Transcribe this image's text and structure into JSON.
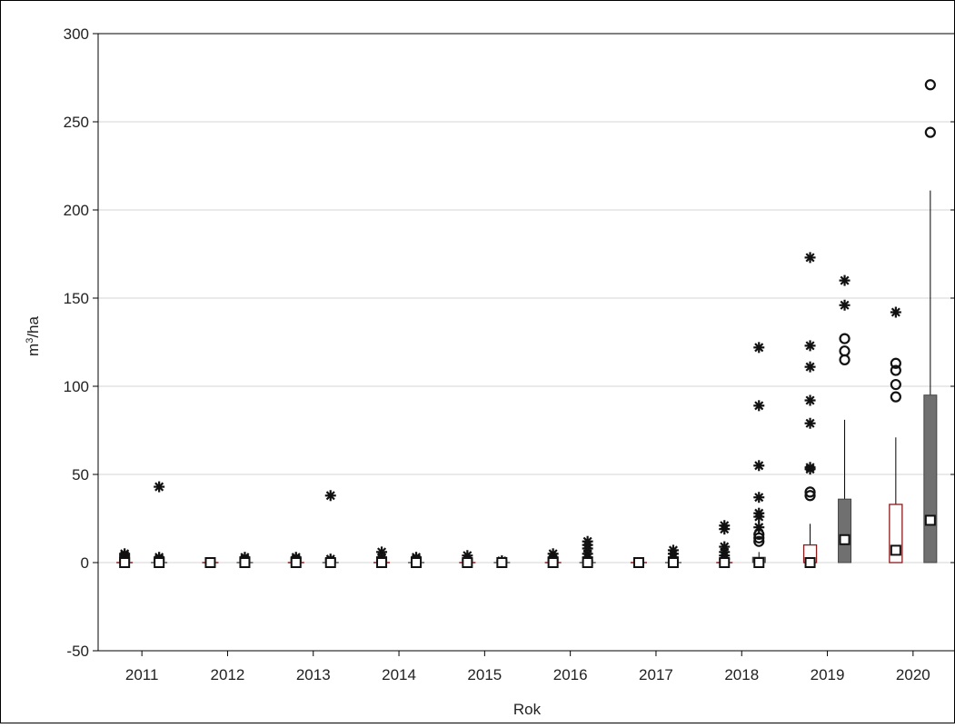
{
  "chart_data": {
    "type": "box",
    "title": "",
    "xlabel": "Rok",
    "ylabel_base": "m",
    "ylabel_sup": "3",
    "ylabel_rest": "/ha",
    "ylim": [
      -50,
      300
    ],
    "yticks": [
      -50,
      0,
      50,
      100,
      150,
      200,
      250,
      300
    ],
    "grid": true,
    "categories": [
      "2011",
      "2012",
      "2013",
      "2014",
      "2015",
      "2016",
      "2017",
      "2018",
      "2019",
      "2020"
    ],
    "series": [
      {
        "style": "hollow",
        "color": "#8b1a1a",
        "boxes": [
          {
            "median": 0,
            "q1": 0,
            "q3": 0,
            "whisker_low": 0,
            "whisker_high": 0,
            "extremes": [
              1,
              2,
              3,
              4,
              5
            ],
            "outliers": []
          },
          {
            "median": 0,
            "q1": 0,
            "q3": 0,
            "whisker_low": 0,
            "whisker_high": 0,
            "extremes": [],
            "outliers": []
          },
          {
            "median": 0,
            "q1": 0,
            "q3": 0,
            "whisker_low": 0,
            "whisker_high": 0,
            "extremes": [
              1,
              2,
              3
            ],
            "outliers": []
          },
          {
            "median": 0,
            "q1": 0,
            "q3": 0,
            "whisker_low": 0,
            "whisker_high": 0,
            "extremes": [
              1,
              3,
              6
            ],
            "outliers": []
          },
          {
            "median": 0,
            "q1": 0,
            "q3": 0,
            "whisker_low": 0,
            "whisker_high": 0,
            "extremes": [
              1,
              2,
              4
            ],
            "outliers": []
          },
          {
            "median": 0,
            "q1": 0,
            "q3": 0,
            "whisker_low": 0,
            "whisker_high": 0,
            "extremes": [
              1,
              2,
              3,
              5
            ],
            "outliers": []
          },
          {
            "median": 0,
            "q1": 0,
            "q3": 0,
            "whisker_low": 0,
            "whisker_high": 0,
            "extremes": [],
            "outliers": []
          },
          {
            "median": 0,
            "q1": 0,
            "q3": 0,
            "whisker_low": 0,
            "whisker_high": 0,
            "extremes": [
              2,
              4,
              6,
              9,
              19,
              21
            ],
            "outliers": []
          },
          {
            "median": 0,
            "q1": 0,
            "q3": 10,
            "whisker_low": 0,
            "whisker_high": 22,
            "extremes": [
              53,
              54,
              79,
              92,
              111,
              123,
              173
            ],
            "outliers": [
              38,
              40
            ]
          },
          {
            "median": 7,
            "q1": 0,
            "q3": 33,
            "whisker_low": 0,
            "whisker_high": 71,
            "extremes": [
              142
            ],
            "outliers": [
              94,
              101,
              109,
              113
            ]
          }
        ]
      },
      {
        "style": "filled",
        "color": "#707070",
        "boxes": [
          {
            "median": 0,
            "q1": 0,
            "q3": 0,
            "whisker_low": 0,
            "whisker_high": 0,
            "extremes": [
              1,
              2,
              3,
              43
            ],
            "outliers": []
          },
          {
            "median": 0,
            "q1": 0,
            "q3": 0,
            "whisker_low": 0,
            "whisker_high": 0,
            "extremes": [
              1,
              2,
              3
            ],
            "outliers": []
          },
          {
            "median": 0,
            "q1": 0,
            "q3": 0,
            "whisker_low": 0,
            "whisker_high": 0,
            "extremes": [
              1,
              2,
              38
            ],
            "outliers": []
          },
          {
            "median": 0,
            "q1": 0,
            "q3": 0,
            "whisker_low": 0,
            "whisker_high": 0,
            "extremes": [
              1,
              2,
              3
            ],
            "outliers": []
          },
          {
            "median": 0,
            "q1": 0,
            "q3": 0,
            "whisker_low": 0,
            "whisker_high": 0,
            "extremes": [
              1
            ],
            "outliers": []
          },
          {
            "median": 0,
            "q1": 0,
            "q3": 0,
            "whisker_low": 0,
            "whisker_high": 0,
            "extremes": [
              1,
              3,
              5,
              8,
              10,
              12
            ],
            "outliers": []
          },
          {
            "median": 0,
            "q1": 0,
            "q3": 0,
            "whisker_low": 0,
            "whisker_high": 0,
            "extremes": [
              1,
              3,
              5,
              7
            ],
            "outliers": []
          },
          {
            "median": 0,
            "q1": 0,
            "q3": 3,
            "whisker_low": 0,
            "whisker_high": 6,
            "extremes": [
              20,
              26,
              28,
              37,
              55,
              89,
              122
            ],
            "outliers": [
              12,
              14,
              16
            ]
          },
          {
            "median": 13,
            "q1": 0,
            "q3": 36,
            "whisker_low": 0,
            "whisker_high": 81,
            "extremes": [
              146,
              160
            ],
            "outliers": [
              115,
              120,
              127
            ]
          },
          {
            "median": 24,
            "q1": 0,
            "q3": 95,
            "whisker_low": 0,
            "whisker_high": 211,
            "extremes": [],
            "outliers": [
              244,
              271
            ]
          }
        ]
      }
    ]
  }
}
